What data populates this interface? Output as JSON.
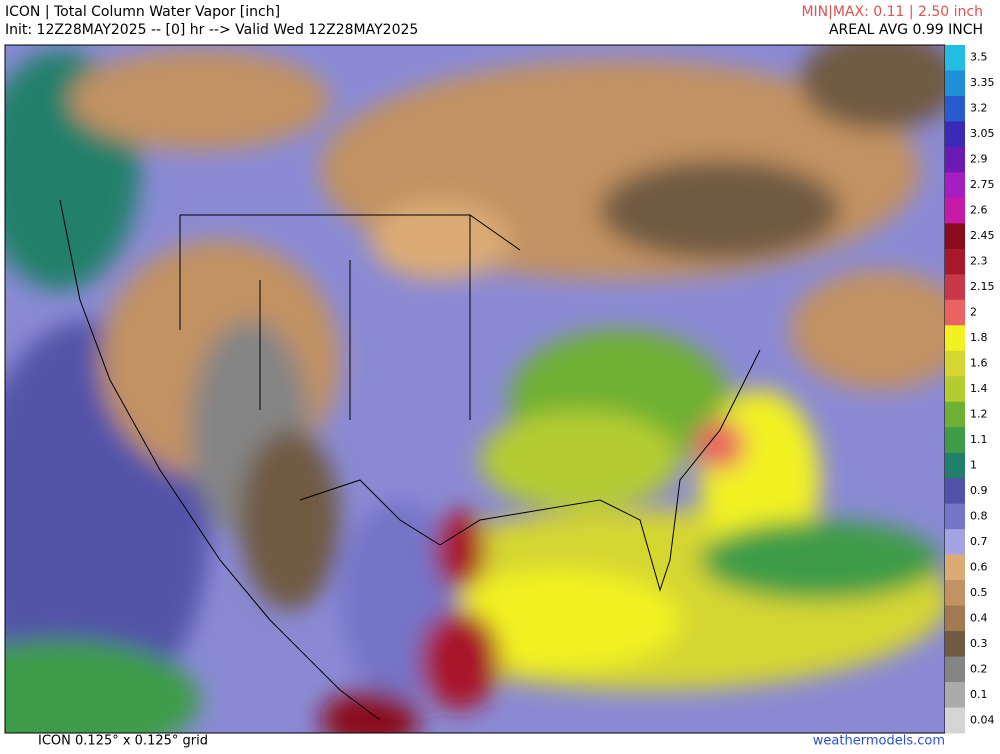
{
  "header": {
    "title": "ICON | Total Column Water Vapor [inch]",
    "init": "Init: 12Z28MAY2025 -- [0] hr --> Valid Wed 12Z28MAY2025",
    "minmax": "MIN|MAX: 0.11 | 2.50 inch",
    "areal_avg": "AREAL AVG 0.99 INCH"
  },
  "colorbar": {
    "levels": [
      {
        "label": "3.5",
        "color": "#22bde0"
      },
      {
        "label": "3.35",
        "color": "#1f90d8"
      },
      {
        "label": "3.2",
        "color": "#2a5ad0"
      },
      {
        "label": "3.05",
        "color": "#3a2ab8"
      },
      {
        "label": "2.9",
        "color": "#6c1ab4"
      },
      {
        "label": "2.75",
        "color": "#a41ec4"
      },
      {
        "label": "2.6",
        "color": "#c81aa8"
      },
      {
        "label": "2.45",
        "color": "#8a0c1c"
      },
      {
        "label": "2.3",
        "color": "#a8182c"
      },
      {
        "label": "2.15",
        "color": "#c83848"
      },
      {
        "label": "2",
        "color": "#ea6262"
      },
      {
        "label": "1.8",
        "color": "#f2f222"
      },
      {
        "label": "1.6",
        "color": "#d6d632"
      },
      {
        "label": "1.4",
        "color": "#b4cc32"
      },
      {
        "label": "1.2",
        "color": "#6eb032"
      },
      {
        "label": "1.1",
        "color": "#3e9c46"
      },
      {
        "label": "1",
        "color": "#22806a"
      },
      {
        "label": "0.9",
        "color": "#5252a8"
      },
      {
        "label": "0.8",
        "color": "#7474c8"
      },
      {
        "label": "0.7",
        "color": "#a4a4e4"
      },
      {
        "label": "0.6",
        "color": "#dcab74"
      },
      {
        "label": "0.5",
        "color": "#c29262"
      },
      {
        "label": "0.4",
        "color": "#a27a52"
      },
      {
        "label": "0.3",
        "color": "#705a42"
      },
      {
        "label": "0.2",
        "color": "#858585"
      },
      {
        "label": "0.1",
        "color": "#ababab"
      },
      {
        "label": "0.04",
        "color": "#d4d4d4"
      }
    ]
  },
  "footer": {
    "grid": "ICON 0.125° x 0.125° grid",
    "site": "weathermodels.com"
  }
}
